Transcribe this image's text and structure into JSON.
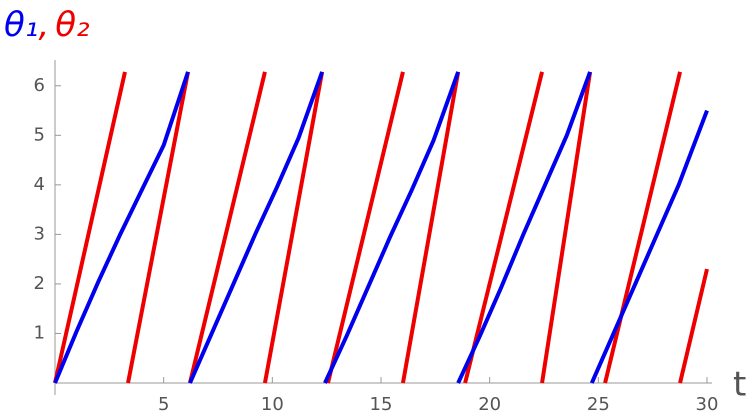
{
  "chart_data": {
    "type": "line",
    "x_label": "t",
    "label_separator": ",",
    "xlim": [
      0,
      30
    ],
    "ylim": [
      0,
      6.5
    ],
    "xticks": [
      5,
      10,
      15,
      20,
      25,
      30
    ],
    "yticks": [
      1,
      2,
      3,
      4,
      5,
      6
    ],
    "series": [
      {
        "name": "θ₁",
        "color": "#0000ee",
        "x": [
          0,
          1,
          2,
          3,
          4,
          5,
          6.12,
          6.16,
          6.21,
          7.21,
          8.21,
          9.21,
          10.21,
          11.21,
          12.29,
          12.35,
          12.42,
          13.42,
          14.42,
          15.42,
          16.42,
          17.42,
          18.55,
          18.55,
          18.55,
          19.55,
          20.55,
          21.55,
          22.55,
          23.55,
          24.62,
          24.66,
          24.7,
          25.7,
          26.7,
          27.7,
          28.7,
          30
        ],
        "values": [
          0,
          1.05,
          2.05,
          3.0,
          3.9,
          4.8,
          6.28,
          null,
          0,
          1.0,
          2.0,
          3.0,
          3.95,
          4.95,
          6.28,
          null,
          0,
          0.95,
          1.95,
          2.95,
          3.9,
          4.9,
          6.28,
          null,
          0,
          0.95,
          1.95,
          3.0,
          4.0,
          5.0,
          6.28,
          null,
          0,
          1.0,
          2.0,
          3.0,
          4.0,
          5.5
        ]
      },
      {
        "name": "θ₂",
        "color": "#ee0000",
        "x": [
          0,
          3.22,
          3.29,
          3.36,
          6.12,
          6.16,
          6.21,
          9.66,
          9.66,
          9.66,
          12.29,
          12.42,
          12.56,
          16.01,
          16.01,
          16.01,
          18.55,
          18.7,
          18.87,
          22.41,
          22.41,
          22.41,
          24.62,
          24.95,
          25.31,
          28.76,
          28.76,
          28.76,
          30
        ],
        "values": [
          0,
          6.28,
          null,
          0,
          6.28,
          null,
          0,
          6.28,
          null,
          0,
          6.28,
          null,
          0,
          6.28,
          null,
          0,
          6.28,
          null,
          0,
          6.28,
          null,
          0,
          6.28,
          null,
          0,
          6.28,
          null,
          0,
          2.3
        ]
      }
    ]
  }
}
